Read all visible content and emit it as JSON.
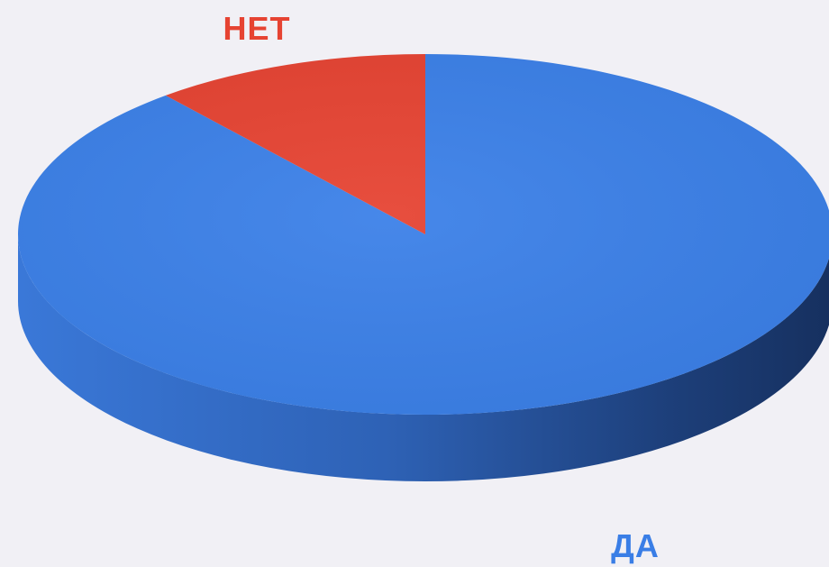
{
  "chart_data": {
    "type": "pie",
    "style": "3d",
    "labels": [
      "ДА",
      "НЕТ"
    ],
    "values": [
      89,
      11
    ],
    "colors": [
      "#3b80e8",
      "#e64332"
    ],
    "label_colors": [
      "#3a7ee6",
      "#e64332"
    ],
    "side_colors": [
      "#2f66c0",
      "#b53428"
    ],
    "background": "#f1f0f5"
  }
}
